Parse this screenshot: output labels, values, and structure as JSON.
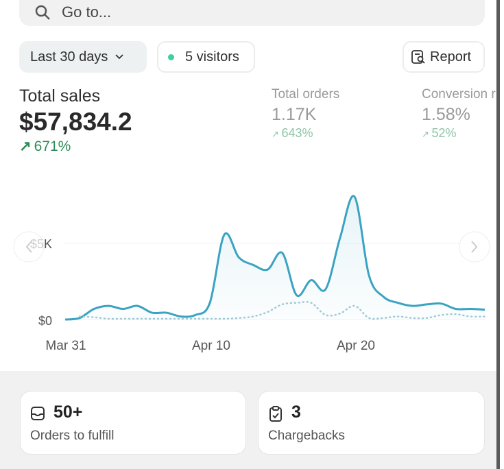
{
  "search": {
    "placeholder": "Go to..."
  },
  "filters": {
    "range_label": "Last 30 days",
    "visitors_label": "5 visitors",
    "report_label": "Report"
  },
  "metrics": [
    {
      "label": "Total sales",
      "value": "$57,834.2",
      "change": "671%"
    },
    {
      "label": "Total orders",
      "value": "1.17K",
      "change": "643%"
    },
    {
      "label": "Conversion r",
      "value": "1.58%",
      "change": "52%"
    }
  ],
  "colors": {
    "line": "#3aa3c2",
    "positive": "#2e8a57",
    "positive_muted": "#8fc4a8",
    "live_dot": "#3ed19a"
  },
  "chart_data": {
    "type": "line",
    "x": [
      "Mar 31",
      "Apr 1",
      "Apr 2",
      "Apr 3",
      "Apr 4",
      "Apr 5",
      "Apr 6",
      "Apr 7",
      "Apr 8",
      "Apr 9",
      "Apr 10",
      "Apr 11",
      "Apr 12",
      "Apr 13",
      "Apr 14",
      "Apr 15",
      "Apr 16",
      "Apr 17",
      "Apr 18",
      "Apr 19",
      "Apr 20",
      "Apr 21",
      "Apr 22",
      "Apr 23",
      "Apr 24",
      "Apr 25",
      "Apr 26",
      "Apr 27",
      "Apr 28",
      "Apr 29"
    ],
    "x_ticks": [
      "Mar 31",
      "Apr 10",
      "Apr 20"
    ],
    "y_ticks": [
      "$0",
      "$5K"
    ],
    "ylim": [
      0,
      8500
    ],
    "series": [
      {
        "style": "solid",
        "values": [
          0,
          100,
          700,
          900,
          700,
          900,
          450,
          450,
          200,
          300,
          1100,
          5600,
          4100,
          3600,
          3300,
          4400,
          1600,
          2600,
          2000,
          5400,
          8100,
          2900,
          1500,
          1100,
          900,
          1000,
          1050,
          700,
          700,
          650
        ]
      },
      {
        "style": "dotted",
        "values": [
          null,
          200,
          150,
          50,
          50,
          50,
          50,
          50,
          50,
          50,
          50,
          50,
          100,
          200,
          500,
          1000,
          1100,
          1100,
          300,
          400,
          900,
          100,
          100,
          200,
          100,
          100,
          300,
          350,
          200,
          200
        ]
      }
    ]
  },
  "cards": [
    {
      "value": "50+",
      "label": "Orders to fulfill",
      "icon": "inbox-icon"
    },
    {
      "value": "3",
      "label": "Chargebacks",
      "icon": "clipboard-check-icon"
    }
  ]
}
